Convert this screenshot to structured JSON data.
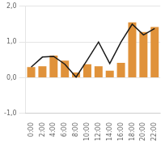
{
  "chart_data": {
    "type": "bar",
    "categories": [
      "0:00",
      "2:00",
      "4:00",
      "6:00",
      "8:00",
      "10:00",
      "12:00",
      "14:00",
      "16:00",
      "18:00",
      "20:00",
      "22:00"
    ],
    "series": [
      {
        "type": "bar",
        "color": "#E0923A",
        "values": [
          0.3,
          0.32,
          0.62,
          0.48,
          0.15,
          0.38,
          0.32,
          0.2,
          0.42,
          1.55,
          1.28,
          1.42
        ]
      },
      {
        "type": "line",
        "color": "#1A1A1A",
        "values": [
          0.3,
          0.58,
          0.6,
          0.38,
          0.02,
          0.5,
          1.0,
          0.4,
          1.0,
          1.5,
          1.2,
          1.38
        ]
      }
    ],
    "ylim": [
      -1.0,
      2.0
    ],
    "yticks": [
      {
        "value": -1.0,
        "label": "-1,0"
      },
      {
        "value": 0.0,
        "label": "0,0"
      },
      {
        "value": 1.0,
        "label": "1,0"
      },
      {
        "value": 2.0,
        "label": "2,0"
      }
    ],
    "grid": true
  }
}
